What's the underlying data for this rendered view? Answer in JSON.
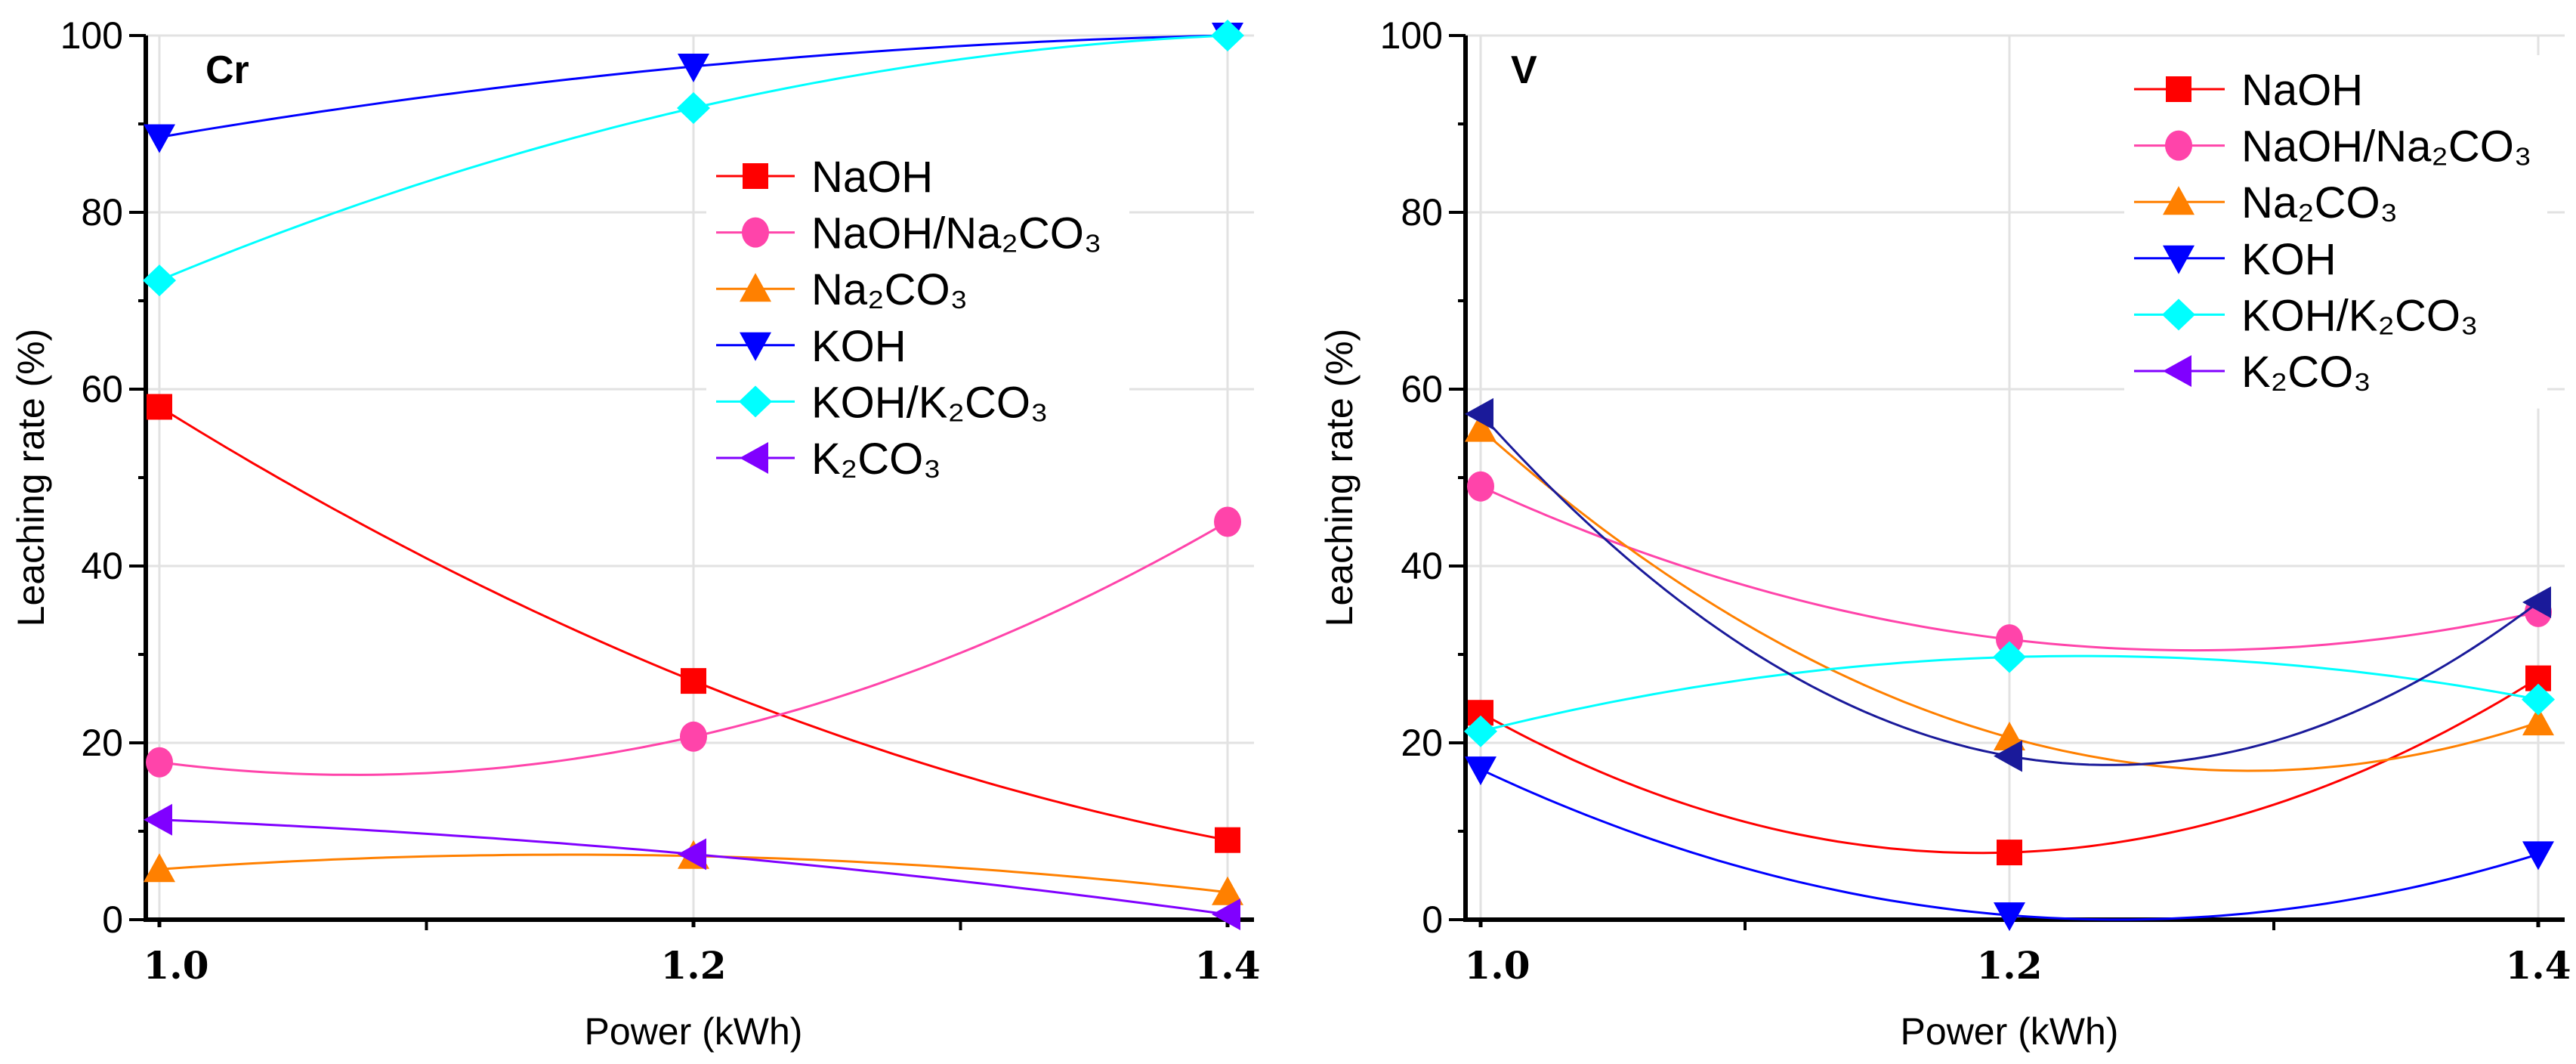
{
  "chart_data": [
    {
      "type": "line",
      "title": "Cr",
      "xlabel": "Power (kWh)",
      "ylabel": "Leaching rate (%)",
      "x": [
        1.0,
        1.2,
        1.4
      ],
      "xticks": [
        "1.0",
        "1.2",
        "1.4"
      ],
      "yticks": [
        "0",
        "20",
        "40",
        "60",
        "80",
        "100"
      ],
      "xlim": [
        1.0,
        1.4
      ],
      "ylim": [
        0,
        100
      ],
      "grid": true,
      "legend_position": "upper-middle-right",
      "series": [
        {
          "name": "NaOH",
          "legend": "NaOH",
          "marker": "square",
          "color": "#ff0000",
          "values": [
            58,
            27,
            9
          ]
        },
        {
          "name": "NaOH/Na2CO3",
          "legend": "NaOH/Na₂CO₃",
          "marker": "circle",
          "color": "#ff44aa",
          "values": [
            17.8,
            20.7,
            45
          ]
        },
        {
          "name": "Na2CO3",
          "legend": "Na₂CO₃",
          "marker": "triangle-up",
          "color": "#ff8000",
          "values": [
            5.7,
            7.2,
            3.1
          ]
        },
        {
          "name": "KOH",
          "legend": "KOH",
          "marker": "triangle-down",
          "color": "#0000ff",
          "values": [
            88.5,
            96.5,
            100
          ]
        },
        {
          "name": "KOH/K2CO3",
          "legend": "KOH/K₂CO₃",
          "marker": "diamond",
          "color": "#00ffff",
          "values": [
            72.3,
            91.8,
            100
          ]
        },
        {
          "name": "K2CO3",
          "legend": "K₂CO₃",
          "marker": "triangle-left",
          "color": "#8000ff",
          "values": [
            11.3,
            7.4,
            0.6
          ]
        }
      ]
    },
    {
      "type": "line",
      "title": "V",
      "xlabel": "Power (kWh)",
      "ylabel": "Leaching rate (%)",
      "x": [
        1.0,
        1.2,
        1.4
      ],
      "xticks": [
        "1.0",
        "1.2",
        "1.4"
      ],
      "yticks": [
        "0",
        "20",
        "40",
        "60",
        "80",
        "100"
      ],
      "xlim": [
        1.0,
        1.4
      ],
      "ylim": [
        0,
        100
      ],
      "grid": true,
      "legend_position": "top-right",
      "series": [
        {
          "name": "NaOH",
          "legend": "NaOH",
          "marker": "square",
          "color": "#ff0000",
          "values": [
            23.4,
            7.6,
            27.3
          ]
        },
        {
          "name": "NaOH/Na2CO3",
          "legend": "NaOH/Na₂CO₃",
          "marker": "circle",
          "color": "#ff44aa",
          "values": [
            49,
            31.7,
            34.8
          ]
        },
        {
          "name": "Na2CO3",
          "legend": "Na₂CO₃",
          "marker": "triangle-up",
          "color": "#ff8000",
          "values": [
            55.5,
            20.6,
            22.3
          ]
        },
        {
          "name": "KOH",
          "legend": "KOH",
          "marker": "triangle-down",
          "color": "#0000ff",
          "values": [
            17,
            0.5,
            7.4
          ]
        },
        {
          "name": "KOH/K2CO3",
          "legend": "KOH/K₂CO₃",
          "marker": "diamond",
          "color": "#00ffff",
          "values": [
            21.3,
            29.7,
            24.9
          ]
        },
        {
          "name": "K2CO3",
          "legend": "K₂CO₃",
          "marker": "triangle-left",
          "color": "#8000ff",
          "plot_color": "#1a1a9a",
          "values": [
            57.2,
            18.5,
            35.9
          ]
        }
      ]
    }
  ]
}
